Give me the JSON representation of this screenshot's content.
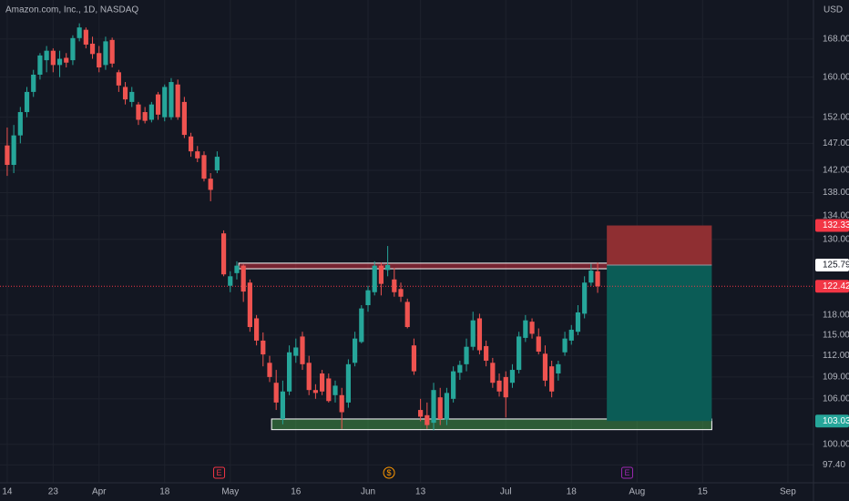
{
  "chart_data": {
    "type": "candlestick",
    "title": "Amazon.com, Inc., 1D, NASDAQ",
    "currency": "USD",
    "log": true,
    "grid": true,
    "up_color": "#26a69a",
    "down_color": "#ef5350",
    "xlim": [
      -1.1,
      122.9
    ],
    "xticks": [
      {
        "value": 0,
        "label": "14"
      },
      {
        "value": 7,
        "label": "23"
      },
      {
        "value": 14,
        "label": "Apr"
      },
      {
        "value": 24,
        "label": "18"
      },
      {
        "value": 34,
        "label": "May"
      },
      {
        "value": 44,
        "label": "16"
      },
      {
        "value": 55,
        "label": "Jun"
      },
      {
        "value": 63,
        "label": "13"
      },
      {
        "value": 76,
        "label": "Jul"
      },
      {
        "value": 86,
        "label": "18"
      },
      {
        "value": 96,
        "label": "Aug"
      },
      {
        "value": 106,
        "label": "15"
      },
      {
        "value": 119,
        "label": "Sep"
      }
    ],
    "ylim": [
      95.2,
      176.6
    ],
    "yticks": [
      {
        "value": 168,
        "label": "168.00"
      },
      {
        "value": 160,
        "label": "160.00"
      },
      {
        "value": 152,
        "label": "152.00"
      },
      {
        "value": 147,
        "label": "147.00"
      },
      {
        "value": 142,
        "label": "142.00"
      },
      {
        "value": 138,
        "label": "138.00"
      },
      {
        "value": 134,
        "label": "134.00"
      },
      {
        "value": 130,
        "label": "130.00"
      },
      {
        "value": 118,
        "label": "118.00"
      },
      {
        "value": 115,
        "label": "115.00"
      },
      {
        "value": 112,
        "label": "112.00"
      },
      {
        "value": 109,
        "label": "109.00"
      },
      {
        "value": 106,
        "label": "106.00"
      },
      {
        "value": 100,
        "label": "100.00"
      },
      {
        "value": 97.4,
        "label": "97.40"
      }
    ],
    "open": [
      146.6,
      143,
      148.5,
      153,
      157,
      160.5,
      163.5,
      165.5,
      162.5,
      164,
      163.5,
      168.2,
      170,
      167,
      165,
      162.5,
      167.8,
      161,
      158,
      155,
      154.5,
      153,
      151.5,
      156.5,
      152,
      152,
      158.5,
      155,
      148.3,
      145.5,
      144.8,
      140.5,
      142,
      131,
      122.5,
      124.5,
      125.7,
      123,
      117.5,
      114.2,
      111,
      108.2,
      103.3,
      107,
      112,
      114.8,
      111,
      107.2,
      109.5,
      108.8,
      106.5,
      106.5,
      105.5,
      111,
      114,
      119.5,
      121.5,
      125.7,
      125,
      123.5,
      122,
      120,
      113.5,
      104.5,
      103.8,
      102.8,
      106.2,
      103.2,
      106,
      109.6,
      110.8,
      113.3,
      117.5,
      113.4,
      111,
      108.5,
      109,
      108.2,
      110,
      114.6,
      117,
      114.8,
      112.3,
      110.5,
      109.5,
      112.5,
      114.2,
      115.5,
      118.2,
      123,
      124.8
    ],
    "high": [
      150,
      150.5,
      154,
      158,
      161.5,
      165,
      166.5,
      166,
      165.5,
      165,
      168.8,
      171.4,
      170.5,
      168.5,
      166.5,
      168.5,
      168.3,
      161.5,
      159,
      158,
      155,
      154,
      155,
      157,
      158.5,
      159.8,
      159.5,
      156,
      149,
      146.5,
      145.5,
      141.5,
      145.5,
      131.5,
      124.8,
      126.4,
      125.9,
      123.5,
      118,
      115.4,
      112,
      110,
      108.5,
      113.5,
      114.5,
      115.5,
      112,
      108,
      110,
      109.5,
      108.5,
      107.5,
      111.5,
      115.5,
      119.5,
      122.5,
      126.4,
      126.2,
      128.9,
      125.3,
      123,
      120.5,
      114.5,
      106,
      105.5,
      108.2,
      107.5,
      107.5,
      110.5,
      111.3,
      114.5,
      118.5,
      118.2,
      114.2,
      111.7,
      109.5,
      109.8,
      110.8,
      115.5,
      118,
      117.5,
      116,
      113.5,
      111.3,
      111.3,
      115.5,
      116.5,
      119.5,
      124,
      126,
      126.2
    ],
    "low": [
      141,
      141.5,
      147,
      152,
      156,
      159.5,
      161,
      161,
      160,
      162,
      162.5,
      167.5,
      166,
      163.8,
      161,
      161.5,
      162,
      157,
      154.5,
      154,
      150.5,
      150.8,
      151,
      151.5,
      151.2,
      151.5,
      151.5,
      148,
      144.5,
      143.5,
      140,
      136.5,
      141.5,
      124,
      121.5,
      123.5,
      120,
      115.5,
      113.5,
      110.5,
      108.3,
      104.5,
      102.6,
      106.5,
      111,
      110,
      106.5,
      106,
      106.5,
      105.5,
      105.5,
      102,
      104.8,
      110.5,
      113.8,
      118.5,
      121,
      121,
      124,
      120.8,
      120,
      116,
      109.3,
      103,
      102,
      101.8,
      102.5,
      102.5,
      105.5,
      108.6,
      109.8,
      112.8,
      112.2,
      110.5,
      107.5,
      106.3,
      103.5,
      107.5,
      109.5,
      114,
      114.5,
      112.2,
      107.7,
      106.2,
      108.5,
      112,
      113.6,
      115,
      117.5,
      122.5,
      121.4
    ],
    "close": [
      143,
      148.5,
      153,
      157,
      160.5,
      164.5,
      165.5,
      162.5,
      163.8,
      163,
      168.2,
      170.5,
      166.8,
      164.8,
      162,
      167.5,
      162.8,
      158.3,
      155.5,
      157,
      151.5,
      151.3,
      154.5,
      152.5,
      158,
      159,
      152,
      148.6,
      145.5,
      144.2,
      140.5,
      138.5,
      144.5,
      124.3,
      124,
      125.7,
      121.6,
      116.2,
      114.2,
      112.2,
      109,
      105.5,
      107,
      112.5,
      113.2,
      110.8,
      107.2,
      106.8,
      107,
      105.7,
      107.8,
      104.2,
      110.8,
      114.5,
      119,
      121.8,
      125.7,
      122.8,
      125.8,
      121.5,
      120.8,
      116.2,
      109.8,
      103.6,
      102.5,
      107.2,
      103.3,
      106.8,
      109.8,
      110.7,
      113.3,
      117.2,
      112.8,
      111.3,
      108.2,
      107,
      106.2,
      110,
      114.8,
      117.2,
      115.2,
      112.6,
      108.5,
      107,
      110.8,
      114.5,
      115.8,
      118.4,
      123,
      124.9,
      122.42
    ],
    "zones": [
      {
        "top": 126.1,
        "bottom": 125.2,
        "start": 35.3,
        "end": 105.4,
        "color": "#f23645"
      },
      {
        "top": 103.3,
        "bottom": 101.9,
        "start": 40.3,
        "end": 107.4,
        "color": "#4caf50"
      }
    ],
    "position": {
      "entry": 125.79,
      "stop": 132.33,
      "target": 103.03,
      "start": 91.4,
      "end": 107.4,
      "stop_color": "#8f2f32",
      "target_color": "#0b5c56"
    },
    "price_line": {
      "value": 122.42,
      "color": "#f23645"
    },
    "price_tags": [
      {
        "value": 132.33,
        "color": "#f23645",
        "text_color": "#ffffff"
      },
      {
        "value": 125.79,
        "color": "#ffffff",
        "text_color": "#131722"
      },
      {
        "value": 122.42,
        "color": "#f23645",
        "text_color": "#ffffff"
      },
      {
        "value": 103.03,
        "color": "#26a69a",
        "text_color": "#ffffff"
      }
    ],
    "events": [
      {
        "label": "E",
        "at": 32.3,
        "color": "#f23645"
      },
      {
        "label": "$",
        "at": 58.2,
        "color": "#ff9800"
      },
      {
        "label": "E",
        "at": 94.5,
        "color": "#9c27b0"
      }
    ]
  }
}
